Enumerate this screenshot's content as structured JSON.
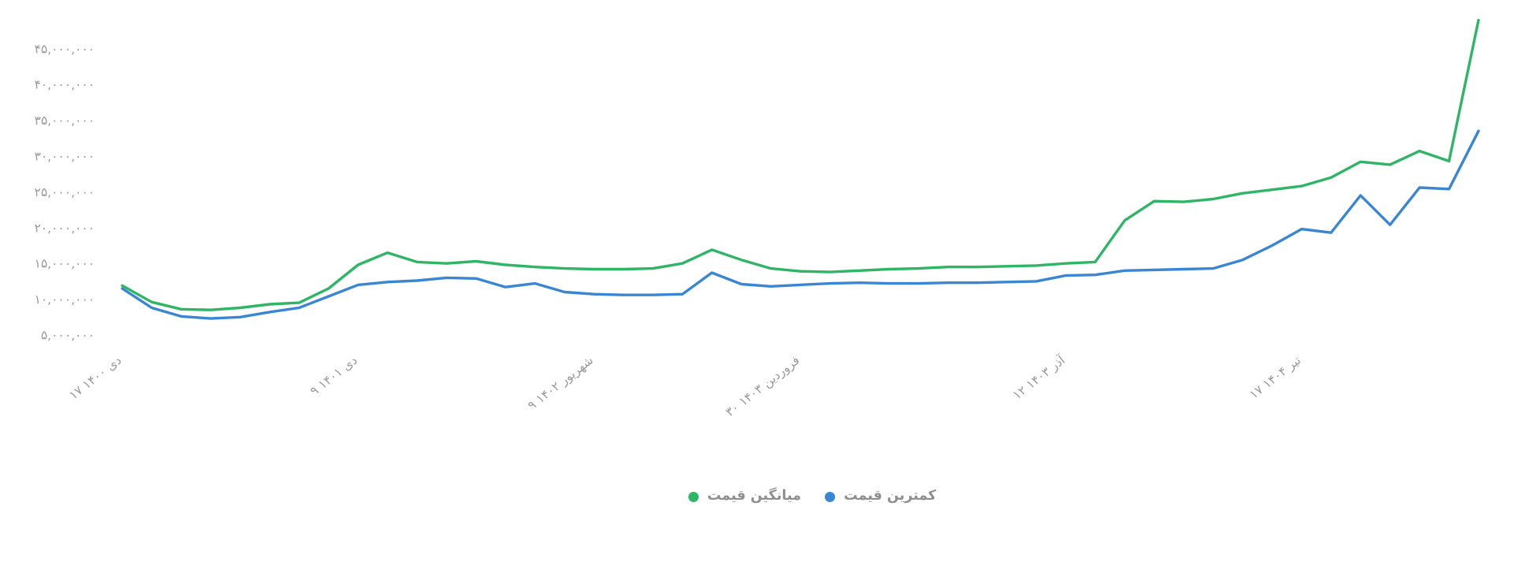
{
  "page": {
    "background": "#ffffff"
  },
  "colors": {
    "axis_text": "#9a9a9a",
    "legend_text": "#8f8f8f",
    "average_line": "#2fb566",
    "lowest_line": "#3a86d3"
  },
  "legend": {
    "items": [
      {
        "label": "میانگین قیمت",
        "color": "#2fb566",
        "series": "average-price"
      },
      {
        "label": "کمترین قیمت",
        "color": "#3a86d3",
        "series": "lowest-price"
      }
    ]
  },
  "chart_data": {
    "type": "line",
    "title": "",
    "rtl": true,
    "grid": false,
    "legend_position": "bottom",
    "ylim": [
      5000000,
      45000000
    ],
    "y_ticks": [
      {
        "value": 5000000,
        "label": "۵,۰۰۰,۰۰۰"
      },
      {
        "value": 10000000,
        "label": "۱۰,۰۰۰,۰۰۰"
      },
      {
        "value": 15000000,
        "label": "۱۵,۰۰۰,۰۰۰"
      },
      {
        "value": 20000000,
        "label": "۲۰,۰۰۰,۰۰۰"
      },
      {
        "value": 25000000,
        "label": "۲۵,۰۰۰,۰۰۰"
      },
      {
        "value": 30000000,
        "label": "۳۰,۰۰۰,۰۰۰"
      },
      {
        "value": 35000000,
        "label": "۳۵,۰۰۰,۰۰۰"
      },
      {
        "value": 40000000,
        "label": "۴۰,۰۰۰,۰۰۰"
      },
      {
        "value": 45000000,
        "label": "۴۵,۰۰۰,۰۰۰"
      }
    ],
    "x_ticks": [
      {
        "index": 0,
        "label": "۱۷ دی ۱۴۰۰"
      },
      {
        "index": 8,
        "label": "۹ دی ۱۴۰۱"
      },
      {
        "index": 16,
        "label": "۹ شهریور ۱۴۰۲"
      },
      {
        "index": 23,
        "label": "۳۰ فروردین ۱۴۰۳"
      },
      {
        "index": 32,
        "label": "۱۲ آذر ۱۴۰۳"
      },
      {
        "index": 40,
        "label": "۱۷ تیر ۱۴۰۴"
      }
    ],
    "series": [
      {
        "name": "میانگین قیمت",
        "color": "#2fb566",
        "values": [
          11900000,
          9600000,
          8600000,
          8500000,
          8800000,
          9300000,
          9500000,
          11500000,
          14800000,
          16500000,
          15200000,
          15000000,
          15300000,
          14800000,
          14500000,
          14300000,
          14200000,
          14200000,
          14300000,
          15000000,
          16900000,
          15500000,
          14300000,
          13900000,
          13800000,
          14000000,
          14200000,
          14300000,
          14500000,
          14500000,
          14600000,
          14700000,
          15000000,
          15200000,
          21000000,
          23700000,
          23600000,
          24000000,
          24800000,
          25300000,
          25800000,
          27000000,
          29200000,
          28800000,
          30700000,
          29300000,
          49000000
        ]
      },
      {
        "name": "کمترین قیمت",
        "color": "#3a86d3",
        "values": [
          11500000,
          8800000,
          7600000,
          7300000,
          7500000,
          8200000,
          8800000,
          10400000,
          12000000,
          12400000,
          12600000,
          13000000,
          12900000,
          11700000,
          12200000,
          11000000,
          10700000,
          10600000,
          10600000,
          10700000,
          13700000,
          12100000,
          11800000,
          12000000,
          12200000,
          12300000,
          12200000,
          12200000,
          12300000,
          12300000,
          12400000,
          12500000,
          13300000,
          13400000,
          14000000,
          14100000,
          14200000,
          14300000,
          15500000,
          17500000,
          19800000,
          19300000,
          24500000,
          20400000,
          25600000,
          25400000,
          33500000
        ]
      }
    ]
  }
}
